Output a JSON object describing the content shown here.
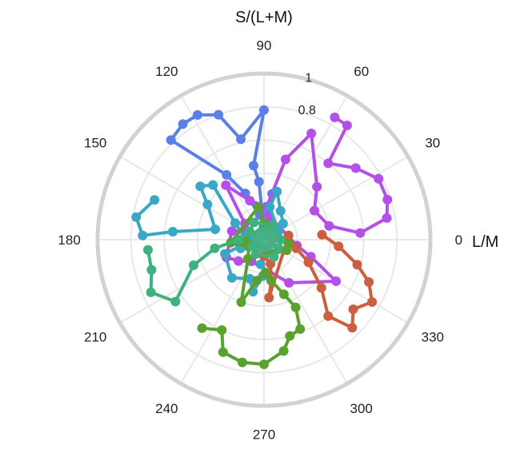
{
  "chart_data": {
    "type": "polar-line",
    "title": "",
    "ylabel": "S/(L+M)",
    "xlabel": "L/M",
    "angle_ticks": [
      "0",
      "30",
      "60",
      "90",
      "120",
      "150",
      "180",
      "210",
      "240",
      "270",
      "300",
      "330"
    ],
    "radial_ticks": [
      "0.8",
      "1"
    ],
    "rlim": [
      0,
      1
    ],
    "grid": true,
    "legend": "none",
    "series": [
      {
        "color": "#5b7fe6",
        "points": [
          [
            92,
            0.08
          ],
          [
            95,
            0.35
          ],
          [
            98,
            0.45
          ],
          [
            90,
            0.78
          ],
          [
            103,
            0.62
          ],
          [
            110,
            0.8
          ],
          [
            118,
            0.85
          ],
          [
            125,
            0.85
          ],
          [
            133,
            0.82
          ],
          [
            120,
            0.45
          ],
          [
            112,
            0.3
          ],
          [
            100,
            0.15
          ],
          [
            85,
            0.2
          ],
          [
            80,
            0.28
          ],
          [
            70,
            0.12
          ],
          [
            190,
            0.15
          ],
          [
            200,
            0.1
          ],
          [
            95,
            0.05
          ]
        ]
      },
      {
        "color": "#b44fe8",
        "points": [
          [
            60,
            0.85
          ],
          [
            54,
            0.85
          ],
          [
            50,
            0.6
          ],
          [
            38,
            0.7
          ],
          [
            28,
            0.78
          ],
          [
            18,
            0.78
          ],
          [
            10,
            0.75
          ],
          [
            4,
            0.58
          ],
          [
            12,
            0.4
          ],
          [
            30,
            0.35
          ],
          [
            45,
            0.45
          ],
          [
            66,
            0.7
          ],
          [
            75,
            0.5
          ],
          [
            85,
            0.2
          ],
          [
            110,
            0.25
          ],
          [
            125,
            0.4
          ],
          [
            140,
            0.15
          ],
          [
            155,
            0.12
          ],
          [
            165,
            0.2
          ],
          [
            205,
            0.25
          ],
          [
            220,
            0.2
          ],
          [
            240,
            0.15
          ],
          [
            300,
            0.3
          ],
          [
            330,
            0.5
          ],
          [
            340,
            0.3
          ],
          [
            350,
            0.2
          ],
          [
            80,
            0.15
          ],
          [
            70,
            0.08
          ]
        ]
      },
      {
        "color": "#3aa7c7",
        "points": [
          [
            160,
            0.7
          ],
          [
            170,
            0.78
          ],
          [
            178,
            0.73
          ],
          [
            175,
            0.55
          ],
          [
            168,
            0.3
          ],
          [
            148,
            0.4
          ],
          [
            140,
            0.5
          ],
          [
            133,
            0.45
          ],
          [
            150,
            0.2
          ],
          [
            190,
            0.1
          ],
          [
            200,
            0.25
          ],
          [
            230,
            0.3
          ],
          [
            250,
            0.25
          ],
          [
            258,
            0.32
          ],
          [
            268,
            0.22
          ],
          [
            275,
            0.2
          ],
          [
            262,
            0.15
          ],
          [
            40,
            0.15
          ],
          [
            60,
            0.2
          ],
          [
            75,
            0.3
          ],
          [
            80,
            0.2
          ],
          [
            30,
            0.1
          ],
          [
            200,
            0.15
          ],
          [
            190,
            0.08
          ]
        ]
      },
      {
        "color": "#cc5f3f",
        "points": [
          [
            5,
            0.35
          ],
          [
            355,
            0.45
          ],
          [
            345,
            0.58
          ],
          [
            338,
            0.68
          ],
          [
            330,
            0.75
          ],
          [
            322,
            0.68
          ],
          [
            315,
            0.75
          ],
          [
            310,
            0.6
          ],
          [
            320,
            0.45
          ],
          [
            333,
            0.3
          ],
          [
            345,
            0.2
          ],
          [
            355,
            0.15
          ],
          [
            10,
            0.15
          ],
          [
            275,
            0.35
          ],
          [
            280,
            0.25
          ],
          [
            285,
            0.15
          ],
          [
            270,
            0.1
          ],
          [
            355,
            0.05
          ]
        ]
      },
      {
        "color": "#5aa22f",
        "points": [
          [
            235,
            0.65
          ],
          [
            245,
            0.6
          ],
          [
            250,
            0.72
          ],
          [
            260,
            0.75
          ],
          [
            270,
            0.75
          ],
          [
            280,
            0.68
          ],
          [
            285,
            0.6
          ],
          [
            292,
            0.58
          ],
          [
            295,
            0.45
          ],
          [
            290,
            0.35
          ],
          [
            280,
            0.25
          ],
          [
            272,
            0.2
          ],
          [
            260,
            0.25
          ],
          [
            250,
            0.4
          ],
          [
            230,
            0.15
          ],
          [
            205,
            0.1
          ],
          [
            185,
            0.2
          ],
          [
            100,
            0.2
          ],
          [
            90,
            0.1
          ],
          [
            350,
            0.15
          ],
          [
            335,
            0.15
          ],
          [
            300,
            0.1
          ],
          [
            180,
            0.12
          ],
          [
            200,
            0.05
          ]
        ]
      },
      {
        "color": "#3db27f",
        "points": [
          [
            185,
            0.7
          ],
          [
            195,
            0.7
          ],
          [
            205,
            0.75
          ],
          [
            215,
            0.65
          ],
          [
            200,
            0.45
          ],
          [
            190,
            0.3
          ],
          [
            180,
            0.15
          ],
          [
            150,
            0.1
          ],
          [
            120,
            0.12
          ],
          [
            60,
            0.1
          ],
          [
            0,
            0.1
          ],
          [
            330,
            0.1
          ],
          [
            300,
            0.12
          ],
          [
            240,
            0.1
          ],
          [
            270,
            0.05
          ],
          [
            210,
            0.08
          ],
          [
            175,
            0.05
          ],
          [
            90,
            0.05
          ]
        ]
      }
    ]
  }
}
